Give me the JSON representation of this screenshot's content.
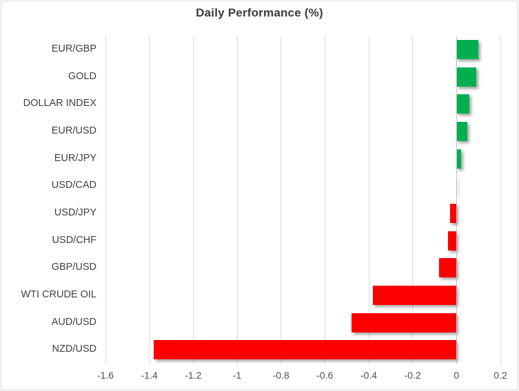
{
  "chart_data": {
    "type": "bar",
    "orientation": "horizontal",
    "title": "Daily Performance (%)",
    "categories": [
      "EUR/GBP",
      "GOLD",
      "DOLLAR INDEX",
      "EUR/USD",
      "EUR/JPY",
      "USD/CAD",
      "USD/JPY",
      "USD/CHF",
      "GBP/USD",
      "WTI CRUDE OIL",
      "AUD/USD",
      "NZD/USD"
    ],
    "values": [
      0.1,
      0.09,
      0.06,
      0.05,
      0.02,
      0.0,
      -0.03,
      -0.04,
      -0.08,
      -0.38,
      -0.48,
      -1.38
    ],
    "xlabel": "",
    "ylabel": "",
    "xlim": [
      -1.6,
      0.2
    ],
    "x_ticks": [
      -1.6,
      -1.4,
      -1.2,
      -1.0,
      -0.8,
      -0.6,
      -0.4,
      -0.2,
      0,
      0.2
    ],
    "x_tick_labels": [
      "-1.6",
      "-1.4",
      "-1.2",
      "-1",
      "-0.8",
      "-0.6",
      "-0.4",
      "-0.2",
      "0",
      "0.2"
    ],
    "grid": "vertical-gridlines",
    "legend": false,
    "colors": {
      "positive": "#00b050",
      "negative": "#ff0000",
      "gridline": "#d9d9d9",
      "zero_axis_line": "#bfbfbf",
      "title_text": "#3b3b3b",
      "category_text": "#404040",
      "tick_text": "#4d4d4d",
      "background": "#ffffff",
      "border": "#d9d9d9"
    }
  }
}
